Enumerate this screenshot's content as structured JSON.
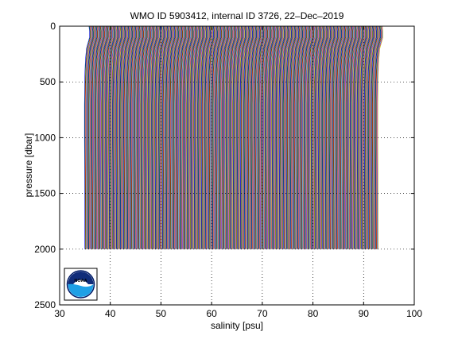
{
  "chart_data": {
    "type": "line",
    "title": "WMO ID 5903412, internal ID 3726, 22–Dec–2019",
    "xlabel": "salinity [psu]",
    "ylabel": "pressure [dbar]",
    "xlim": [
      30,
      100
    ],
    "ylim": [
      2500,
      0
    ],
    "y_reversed": true,
    "grid": true,
    "grid_style": "dotted",
    "xticks": [
      30,
      40,
      50,
      60,
      70,
      80,
      90,
      100
    ],
    "yticks": [
      0,
      500,
      1000,
      1500,
      2000,
      2500
    ],
    "profile_offset_psu": 0.1,
    "profile_count": 580,
    "base_profile": {
      "pressure": [
        0,
        50,
        100,
        150,
        200,
        300,
        400,
        500,
        700,
        1000,
        1500,
        2000
      ],
      "salinity": [
        35.8,
        35.9,
        35.9,
        35.6,
        35.3,
        35.1,
        35.0,
        34.95,
        34.9,
        34.9,
        34.95,
        34.98
      ]
    },
    "series_colors": [
      "#0000ff",
      "#008000",
      "#ff0000",
      "#00bfbf",
      "#bf00bf",
      "#bfbf00",
      "#404040"
    ]
  },
  "logo": {
    "text": "NOAA"
  }
}
